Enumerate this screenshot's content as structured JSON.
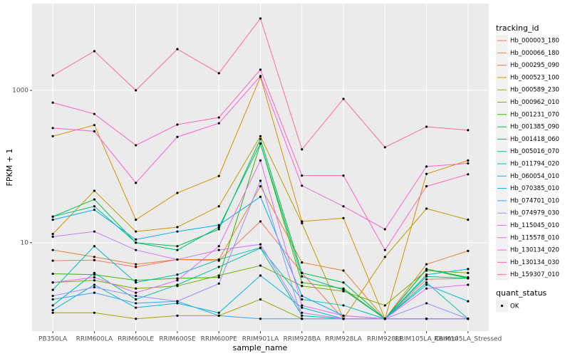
{
  "chart_data": {
    "type": "line",
    "log_y": true,
    "x_label": "sample_name",
    "y_label": "FPKM + 1",
    "categories": [
      "PB350LA",
      "RRIM600LA",
      "RRIM600LE",
      "RRIM600SE",
      "RRIM600PE",
      "RRIM901LA",
      "RRIM928BA",
      "RRIM928LA",
      "RRIM928LE",
      "RRIM105LA_Control",
      "RRIM105LA_Stressed"
    ],
    "ylim": [
      0.69,
      13800
    ],
    "yticks": [
      10,
      1000
    ],
    "grid": true,
    "legend_title": "tracking_id",
    "legend_position": "right",
    "point_legend_title": "quant_status",
    "point_legend_label": "OK",
    "point_color": "#000000",
    "series": [
      {
        "name": "Hb_000003_180",
        "color": "#F8766D",
        "values": [
          5.8,
          5.9,
          4.8,
          6.0,
          5.8,
          19,
          4.0,
          1,
          1,
          3.3,
          3.4
        ]
      },
      {
        "name": "Hb_000066_180",
        "color": "#EA8331",
        "values": [
          8,
          6.5,
          5.2,
          6,
          6,
          55,
          5.5,
          4.3,
          1,
          5.2,
          7.8
        ]
      },
      {
        "name": "Hb_000295_090",
        "color": "#D89000",
        "values": [
          250,
          350,
          20,
          45,
          75,
          1500,
          19,
          21,
          1,
          80,
          120
        ]
      },
      {
        "name": "Hb_000523_100",
        "color": "#C09B00",
        "values": [
          13,
          48,
          14,
          16,
          30,
          250,
          18,
          1,
          6.5,
          28,
          20
        ]
      },
      {
        "name": "Hb_000589_230",
        "color": "#A3A500",
        "values": [
          1.2,
          1.2,
          1,
          1.1,
          1.1,
          1.8,
          1,
          1,
          1,
          1,
          1
        ]
      },
      {
        "name": "Hb_000962_010",
        "color": "#7CAE00",
        "values": [
          3,
          3.2,
          2.5,
          2.7,
          3.7,
          5,
          2.7,
          2.3,
          1.5,
          4.3,
          4
        ]
      },
      {
        "name": "Hb_001231_070",
        "color": "#39B600",
        "values": [
          3.9,
          3.8,
          3.2,
          3.4,
          3.5,
          200,
          3,
          2.5,
          1,
          4.5,
          3.4
        ]
      },
      {
        "name": "Hb_001385_090",
        "color": "#00BB4E",
        "values": [
          22,
          37,
          10,
          9,
          15,
          230,
          4,
          3,
          1,
          4.5,
          3.5
        ]
      },
      {
        "name": "Hb_001418_060",
        "color": "#00BF7D",
        "values": [
          22,
          30,
          10,
          8,
          16,
          200,
          3.6,
          2.4,
          1,
          3.6,
          3.4
        ]
      },
      {
        "name": "Hb_005016_070",
        "color": "#00C1A3",
        "values": [
          1.5,
          4,
          1.8,
          2.8,
          4.8,
          8.5,
          1.1,
          1,
          1,
          3,
          1
        ]
      },
      {
        "name": "Hb_011794_020",
        "color": "#00BFC4",
        "values": [
          2.4,
          9,
          3,
          3.8,
          6,
          8.6,
          1.8,
          1.5,
          1,
          3.8,
          4.5
        ]
      },
      {
        "name": "Hb_060054_010",
        "color": "#00BAE0",
        "values": [
          1.3,
          2.8,
          1.4,
          1.6,
          1.2,
          3.7,
          1.4,
          1,
          1,
          2.8,
          1.7
        ]
      },
      {
        "name": "Hb_070385_010",
        "color": "#00B0F6",
        "values": [
          20,
          27,
          11,
          14,
          17,
          40,
          2,
          1.1,
          1,
          1,
          1
        ]
      },
      {
        "name": "Hb_074701_010",
        "color": "#35A2FF",
        "values": [
          1.8,
          2.2,
          1.6,
          1.7,
          1.1,
          1,
          1,
          1,
          1,
          1,
          1
        ]
      },
      {
        "name": "Hb_074979_030",
        "color": "#9590FF",
        "values": [
          2,
          2.6,
          2,
          1.7,
          2.9,
          65,
          1,
          1,
          1,
          1.6,
          1
        ]
      },
      {
        "name": "Hb_115045_010",
        "color": "#C77CFF",
        "values": [
          12,
          14,
          8,
          6,
          8,
          9.5,
          1.2,
          1,
          1,
          1,
          1
        ]
      },
      {
        "name": "Hb_115578_010",
        "color": "#E76BF3",
        "values": [
          3,
          3.5,
          2.2,
          3.2,
          9,
          120,
          1.5,
          1.1,
          1,
          2.5,
          2.8
        ]
      },
      {
        "name": "Hb_130134_020",
        "color": "#FA62DB",
        "values": [
          320,
          290,
          61,
          245,
          370,
          1540,
          56,
          30,
          15,
          100,
          110
        ]
      },
      {
        "name": "Hb_130134_030",
        "color": "#FF62BC",
        "values": [
          690,
          490,
          190,
          355,
          440,
          1870,
          76,
          76,
          8,
          55,
          79
        ]
      },
      {
        "name": "Hb_159307_010",
        "color": "#FF6C91",
        "values": [
          1570,
          3270,
          1000,
          3480,
          1680,
          8790,
          168,
          773,
          179,
          333,
          300
        ]
      }
    ]
  }
}
